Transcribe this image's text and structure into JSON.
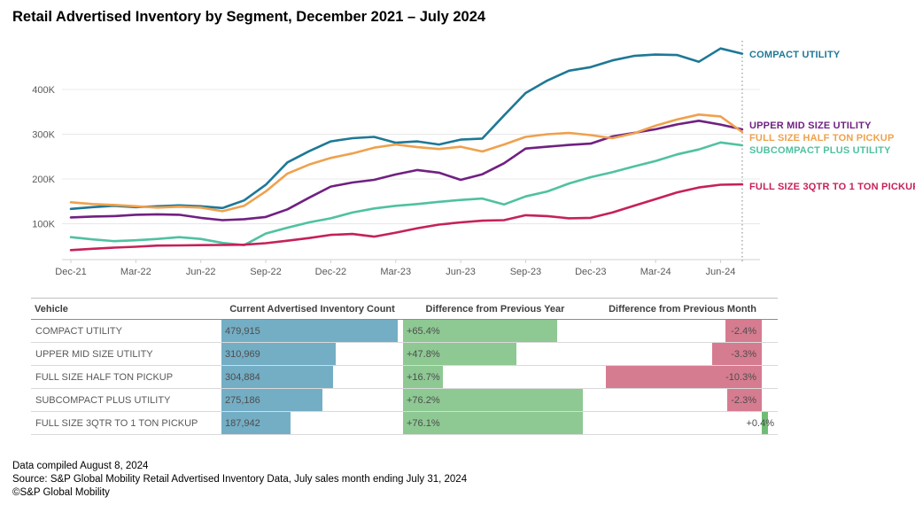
{
  "title": "Retail Advertised Inventory by Segment, December 2021 – July 2024",
  "colors": {
    "grid": "#e8e8e8",
    "axis_line": "#d0d0d0",
    "axis_text": "#595959",
    "dotted_marker": "#a0a0a0",
    "bar_blue": "#74aec5",
    "bar_green": "#8ec893",
    "bar_red": "#d67c90",
    "header_text": "#404040"
  },
  "chart_data": {
    "type": "line",
    "title": "Retail Advertised Inventory by Segment, December 2021 – July 2024",
    "xlabel": "",
    "ylabel": "",
    "ylim": [
      0,
      520000
    ],
    "grid": "horizontal",
    "legend_position": "right-edge-labels",
    "annotation": "dotted vertical marker line at Jul-24 (latest month)",
    "x": [
      "Dec-21",
      "Jan-22",
      "Feb-22",
      "Mar-22",
      "Apr-22",
      "May-22",
      "Jun-22",
      "Jul-22",
      "Aug-22",
      "Sep-22",
      "Oct-22",
      "Nov-22",
      "Dec-22",
      "Jan-23",
      "Feb-23",
      "Mar-23",
      "Apr-23",
      "May-23",
      "Jun-23",
      "Jul-23",
      "Aug-23",
      "Sep-23",
      "Oct-23",
      "Nov-23",
      "Dec-23",
      "Jan-24",
      "Feb-24",
      "Mar-24",
      "Apr-24",
      "May-24",
      "Jun-24",
      "Jul-24"
    ],
    "x_tick_labels": [
      "Dec-21",
      "Mar-22",
      "Jun-22",
      "Sep-22",
      "Dec-22",
      "Mar-23",
      "Jun-23",
      "Sep-23",
      "Dec-23",
      "Mar-24",
      "Jun-24"
    ],
    "y_ticks": [
      {
        "label": "100K",
        "value": 100000
      },
      {
        "label": "200K",
        "value": 200000
      },
      {
        "label": "300K",
        "value": 300000
      },
      {
        "label": "400K",
        "value": 400000
      }
    ],
    "series": [
      {
        "name": "COMPACT UTILITY",
        "color": "#1e7896",
        "values": [
          133000,
          137000,
          140000,
          137000,
          139000,
          141000,
          139000,
          135000,
          152000,
          187000,
          237000,
          262000,
          284000,
          291000,
          294000,
          281000,
          284000,
          277000,
          288000,
          290200,
          342000,
          392000,
          420000,
          442000,
          450000,
          465000,
          475000,
          478000,
          477000,
          462000,
          491716,
          479915
        ]
      },
      {
        "name": "UPPER MID SIZE UTILITY",
        "color": "#702082",
        "values": [
          114000,
          116000,
          117000,
          120000,
          121000,
          120000,
          113000,
          108000,
          110000,
          115000,
          132000,
          158000,
          183000,
          192000,
          198000,
          210000,
          220000,
          214000,
          198000,
          210400,
          235000,
          268000,
          272000,
          276000,
          279000,
          295000,
          303000,
          311000,
          322000,
          330000,
          321582,
          310969
        ]
      },
      {
        "name": "FULL SIZE HALF TON PICKUP",
        "color": "#efa14d",
        "values": [
          148000,
          144000,
          142000,
          139000,
          136000,
          138000,
          136000,
          128000,
          140000,
          172000,
          212000,
          232000,
          247000,
          257000,
          270000,
          277000,
          271000,
          267000,
          272000,
          261300,
          277000,
          294000,
          300000,
          303000,
          298000,
          291000,
          302000,
          319000,
          333000,
          344000,
          339893,
          304884
        ]
      },
      {
        "name": "SUBCOMPACT PLUS UTILITY",
        "color": "#4fc1a1",
        "values": [
          70000,
          65000,
          61000,
          63000,
          66000,
          70000,
          66000,
          57000,
          52000,
          78000,
          91000,
          103000,
          112000,
          125000,
          134000,
          140000,
          144000,
          149000,
          153000,
          156200,
          143000,
          161000,
          172000,
          190000,
          204000,
          215000,
          228000,
          240000,
          255000,
          266000,
          281663,
          275186
        ]
      },
      {
        "name": "FULL SIZE 3QTR TO 1 TON PICKUP",
        "color": "#c5215a",
        "values": [
          41000,
          44000,
          46500,
          48500,
          51000,
          51500,
          52000,
          52500,
          53000,
          56500,
          62000,
          68000,
          75000,
          77000,
          71000,
          80000,
          90000,
          98000,
          103000,
          106700,
          108000,
          119000,
          117000,
          112000,
          113000,
          125000,
          140000,
          155000,
          170000,
          181000,
          187193,
          187942
        ]
      }
    ]
  },
  "table": {
    "columns": [
      "Vehicle",
      "Current Advertised Inventory Count",
      "Difference from Previous Year",
      "Difference from Previous Month"
    ],
    "count_scale_max": 495000,
    "yoy_scale_max": 78,
    "mom_scale_max": 11.5,
    "rows": [
      {
        "vehicle": "COMPACT UTILITY",
        "count": "479,915",
        "count_value": 479915,
        "yoy": "+65.4%",
        "yoy_value": 65.4,
        "mom": "-2.4%",
        "mom_value": -2.4
      },
      {
        "vehicle": "UPPER MID SIZE UTILITY",
        "count": "310,969",
        "count_value": 310969,
        "yoy": "+47.8%",
        "yoy_value": 47.8,
        "mom": "-3.3%",
        "mom_value": -3.3
      },
      {
        "vehicle": "FULL SIZE HALF TON PICKUP",
        "count": "304,884",
        "count_value": 304884,
        "yoy": "+16.7%",
        "yoy_value": 16.7,
        "mom": "-10.3%",
        "mom_value": -10.3
      },
      {
        "vehicle": "SUBCOMPACT PLUS UTILITY",
        "count": "275,186",
        "count_value": 275186,
        "yoy": "+76.2%",
        "yoy_value": 76.2,
        "mom": "-2.3%",
        "mom_value": -2.3
      },
      {
        "vehicle": "FULL SIZE 3QTR TO 1 TON PICKUP",
        "count": "187,942",
        "count_value": 187942,
        "yoy": "+76.1%",
        "yoy_value": 76.1,
        "mom": "+0.4%",
        "mom_value": 0.4
      }
    ]
  },
  "footer": {
    "line1": "Data compiled August 8, 2024",
    "line2": "Source: S&P Global Mobility Retail Advertised Inventory Data, July sales month ending July 31, 2024",
    "line3": "©S&P Global Mobility"
  }
}
